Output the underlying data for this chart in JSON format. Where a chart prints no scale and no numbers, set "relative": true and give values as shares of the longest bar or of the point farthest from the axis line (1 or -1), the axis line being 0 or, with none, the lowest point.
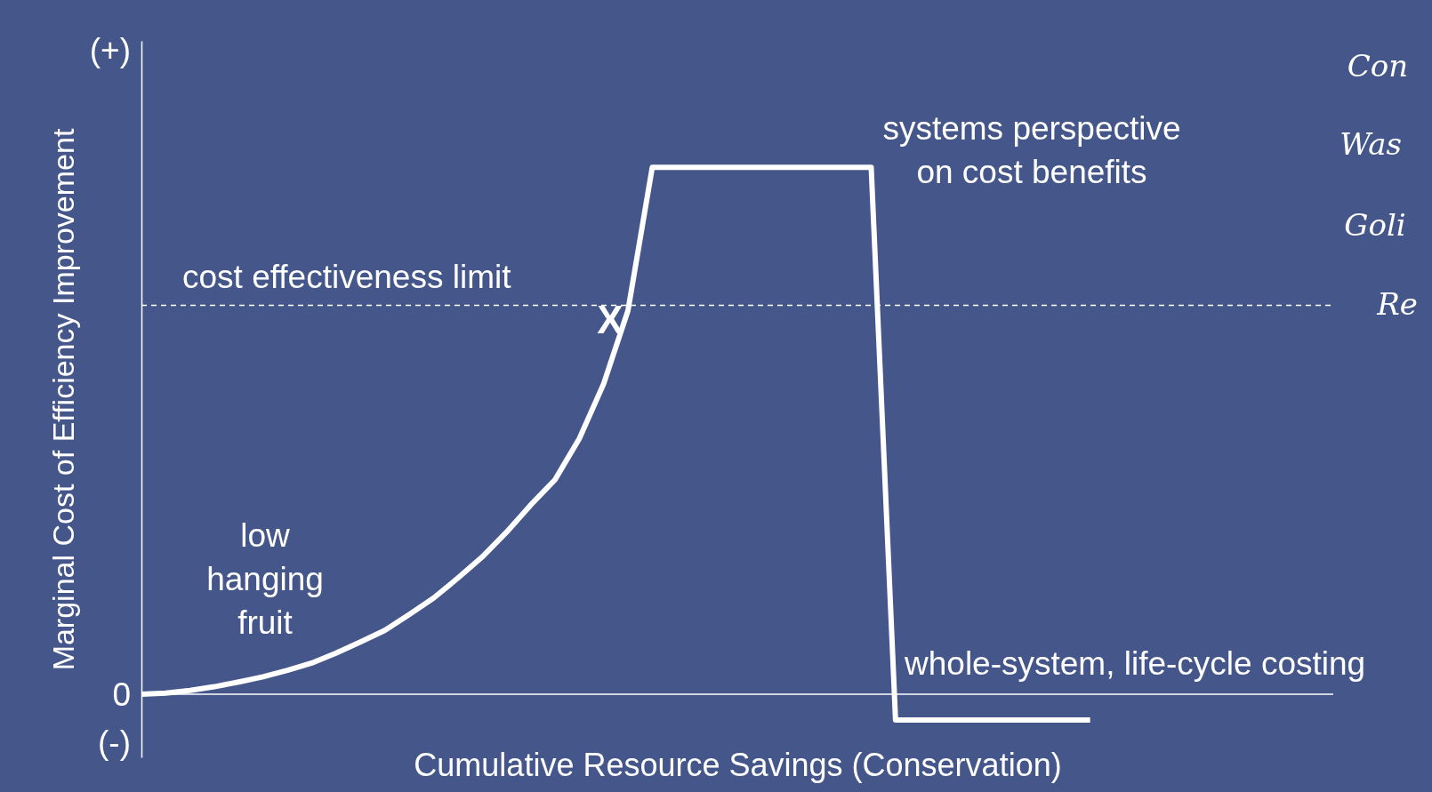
{
  "chart_data": {
    "type": "line",
    "relative": true,
    "xlabel": "Cumulative Resource Savings (Conservation)",
    "ylabel": "Marginal Cost of Efficiency Improvement",
    "categories": [
      null,
      null,
      null,
      null,
      null,
      null,
      null,
      null,
      null,
      null,
      null,
      null,
      null,
      null,
      null,
      null,
      null,
      null,
      null,
      null,
      null,
      null,
      null,
      null,
      null,
      null,
      null,
      null,
      null,
      null,
      null,
      null,
      null,
      null,
      null,
      null,
      null,
      null,
      null,
      null
    ],
    "series": [
      {
        "color": "#ffffff",
        "values": [
          0,
          0.002,
          0.007,
          0.014,
          0.023,
          0.033,
          0.045,
          0.059,
          0.078,
          0.099,
          0.121,
          0.151,
          0.182,
          0.22,
          0.26,
          0.307,
          0.359,
          0.407,
          0.485,
          0.589,
          0.728,
          1,
          1,
          1,
          1,
          1,
          1,
          1,
          1,
          1,
          1,
          -0.049,
          -0.049,
          -0.049,
          -0.049,
          -0.049,
          -0.049,
          -0.049,
          -0.049,
          -0.049
        ]
      }
    ],
    "ref_lines": [
      {
        "axis": "y",
        "value": 0.738,
        "label": "cost effectiveness limit",
        "line_style": "dashed",
        "color": "#ffffff"
      }
    ],
    "annotations": [
      "low\nhanging\nfruit",
      "systems perspective\non cost benefits",
      "whole-system, life-cycle costing",
      "Con",
      "Was",
      "Goli",
      "Re",
      "(+)",
      "0",
      "(-)",
      "X"
    ]
  }
}
